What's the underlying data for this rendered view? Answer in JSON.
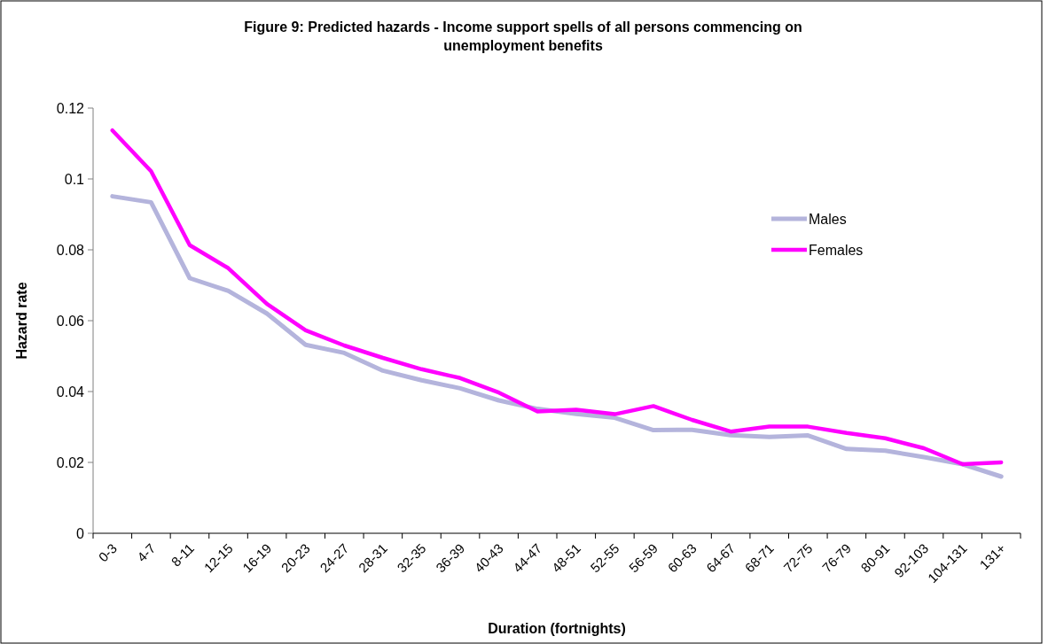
{
  "chart_data": {
    "type": "line",
    "title": "Figure 9: Predicted hazards - Income support spells of all persons commencing on unemployment benefits",
    "xlabel": "Duration (fortnights)",
    "ylabel": "Hazard rate",
    "categories": [
      "0-3",
      "4-7",
      "8-11",
      "12-15",
      "16-19",
      "20-23",
      "24-27",
      "28-31",
      "32-35",
      "36-39",
      "40-43",
      "44-47",
      "48-51",
      "52-55",
      "56-59",
      "60-63",
      "64-67",
      "68-71",
      "72-75",
      "76-79",
      "80-91",
      "92-103",
      "104-131",
      "131+"
    ],
    "series": [
      {
        "name": "Males",
        "color": "#b4b4dc",
        "values": [
          0.0951,
          0.0934,
          0.072,
          0.0684,
          0.062,
          0.0532,
          0.0509,
          0.0459,
          0.0432,
          0.0409,
          0.0375,
          0.0351,
          0.0337,
          0.0326,
          0.0291,
          0.0292,
          0.0277,
          0.0272,
          0.0276,
          0.0238,
          0.0233,
          0.0215,
          0.0195,
          0.016
        ]
      },
      {
        "name": "Females",
        "color": "#ff00ff",
        "values": [
          0.1137,
          0.1022,
          0.0813,
          0.0748,
          0.0647,
          0.0573,
          0.053,
          0.0495,
          0.0463,
          0.0438,
          0.0397,
          0.0344,
          0.0349,
          0.0336,
          0.0359,
          0.032,
          0.0287,
          0.0301,
          0.0301,
          0.0283,
          0.0268,
          0.024,
          0.0195,
          0.02
        ]
      }
    ],
    "ylim": [
      0,
      0.12
    ],
    "yticks": [
      0,
      0.02,
      0.04,
      0.06,
      0.08,
      0.1,
      0.12
    ],
    "grid": false,
    "legend": "top right",
    "line_style": "solid",
    "marker": "none"
  }
}
